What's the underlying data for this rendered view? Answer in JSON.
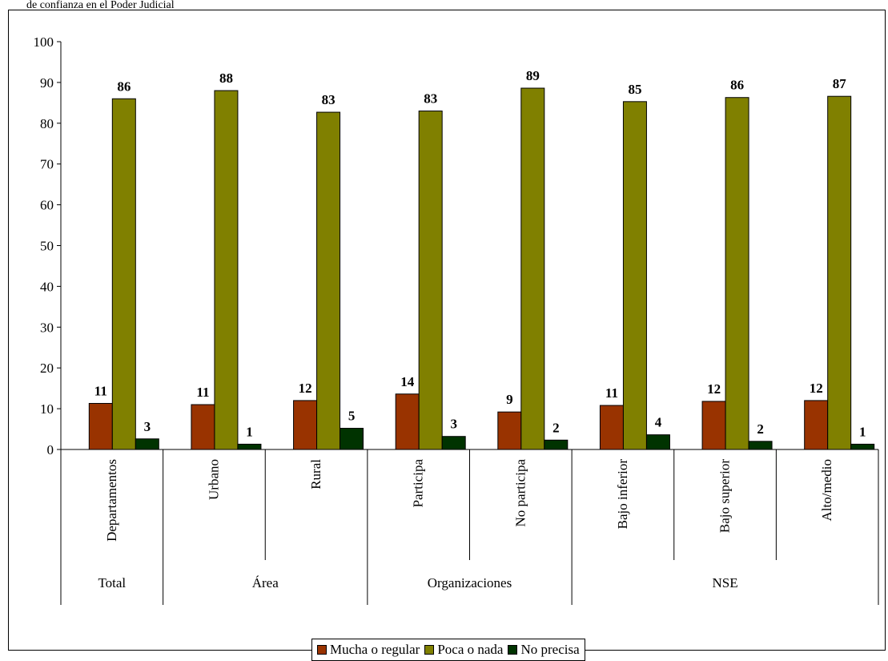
{
  "fragment": "de confianza en el Poder Judicial",
  "chart_data": {
    "type": "bar",
    "ylim": [
      0,
      100
    ],
    "yticks": [
      0,
      10,
      20,
      30,
      40,
      50,
      60,
      70,
      80,
      90,
      100
    ],
    "grid": false,
    "legend_position": "bottom",
    "categories": [
      "Departamentos",
      "Urbano",
      "Rural",
      "Participa",
      "No participa",
      "Bajo inferior",
      "Bajo superior",
      "Alto/medio"
    ],
    "groups": [
      {
        "label": "Total",
        "span": 1
      },
      {
        "label": "Área",
        "span": 2
      },
      {
        "label": "Organizaciones",
        "span": 2
      },
      {
        "label": "NSE",
        "span": 3
      }
    ],
    "series": [
      {
        "name": "Mucha o regular",
        "color": "#993300",
        "values": [
          11.3,
          11,
          12,
          13.6,
          9.2,
          10.8,
          11.8,
          12
        ],
        "labels": [
          "11",
          "11",
          "12",
          "14",
          "9",
          "11",
          "12",
          "12"
        ]
      },
      {
        "name": "Poca o nada",
        "color": "#808000",
        "values": [
          86,
          88,
          82.7,
          83,
          88.6,
          85.3,
          86.3,
          86.6
        ],
        "labels": [
          "86",
          "88",
          "83",
          "83",
          "89",
          "85",
          "86",
          "87"
        ]
      },
      {
        "name": "No precisa",
        "color": "#003300",
        "values": [
          2.6,
          1.3,
          5.2,
          3.2,
          2.3,
          3.6,
          2,
          1.3
        ],
        "labels": [
          "3",
          "1",
          "5",
          "3",
          "2",
          "4",
          "2",
          "1"
        ]
      }
    ]
  }
}
